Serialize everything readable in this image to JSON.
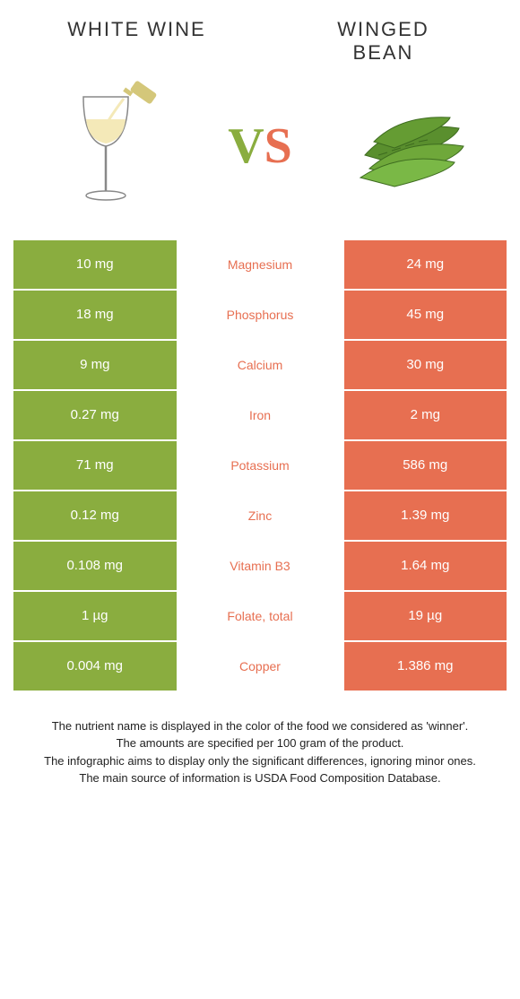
{
  "left_title": "WHITE WINE",
  "right_title": "WINGED BEAN",
  "vs": {
    "v": "V",
    "s": "S"
  },
  "colors": {
    "green": "#8aad3f",
    "orange": "#e76f51"
  },
  "rows": [
    {
      "left": "10 mg",
      "mid": "Magnesium",
      "right": "24 mg",
      "winner": "orange"
    },
    {
      "left": "18 mg",
      "mid": "Phosphorus",
      "right": "45 mg",
      "winner": "orange"
    },
    {
      "left": "9 mg",
      "mid": "Calcium",
      "right": "30 mg",
      "winner": "orange"
    },
    {
      "left": "0.27 mg",
      "mid": "Iron",
      "right": "2 mg",
      "winner": "orange"
    },
    {
      "left": "71 mg",
      "mid": "Potassium",
      "right": "586 mg",
      "winner": "orange"
    },
    {
      "left": "0.12 mg",
      "mid": "Zinc",
      "right": "1.39 mg",
      "winner": "orange"
    },
    {
      "left": "0.108 mg",
      "mid": "Vitamin B3",
      "right": "1.64 mg",
      "winner": "orange"
    },
    {
      "left": "1 µg",
      "mid": "Folate, total",
      "right": "19 µg",
      "winner": "orange"
    },
    {
      "left": "0.004 mg",
      "mid": "Copper",
      "right": "1.386 mg",
      "winner": "orange"
    }
  ],
  "footer": [
    "The nutrient name is displayed in the color of the food we considered as 'winner'.",
    "The amounts are specified per 100 gram of the product.",
    "The infographic aims to display only the significant differences, ignoring minor ones.",
    "The main source of information is USDA Food Composition Database."
  ]
}
